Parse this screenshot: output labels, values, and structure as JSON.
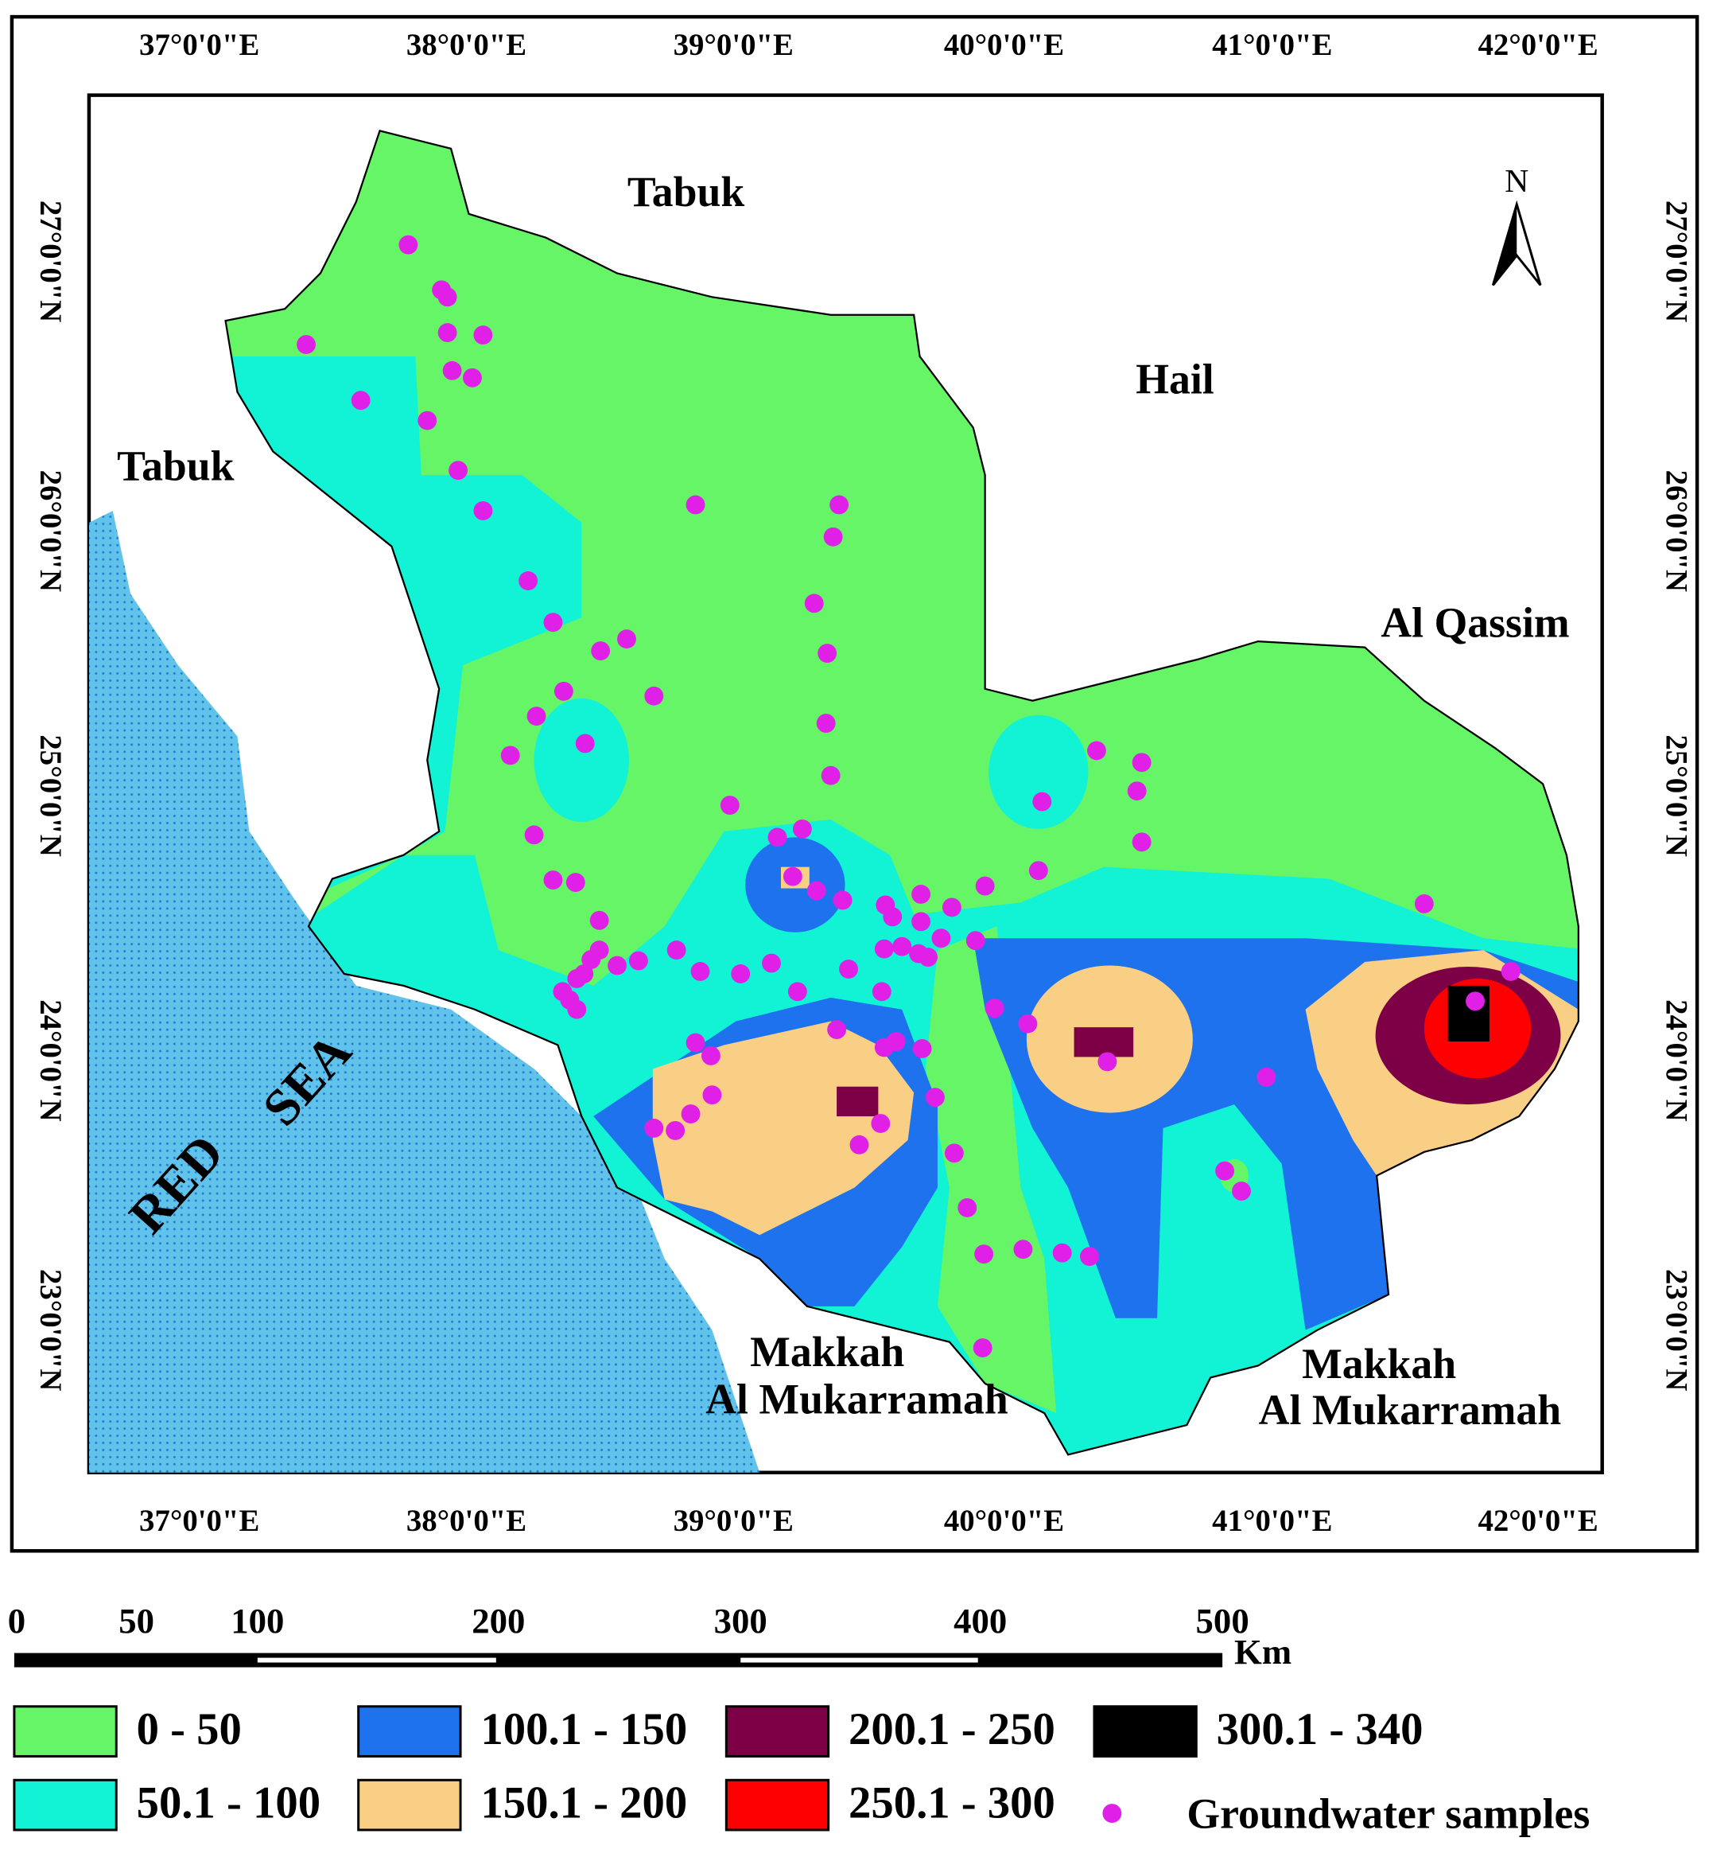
{
  "map": {
    "lon_labels": [
      "37°0'0\"E",
      "38°0'0\"E",
      "39°0'0\"E",
      "40°0'0\"E",
      "41°0'0\"E",
      "42°0'0\"E"
    ],
    "lat_labels": [
      "27°0'0\"N",
      "26°0'0\"N",
      "25°0'0\"N",
      "24°0'0\"N",
      "23°0'0\"N"
    ],
    "places": [
      "Tabuk",
      "Tabuk",
      "Hail",
      "Al Qassim",
      "Makkah",
      "Al Mukarramah",
      "Makkah",
      "Al Mukarramah"
    ],
    "sea": [
      "RED",
      "SEA"
    ],
    "north": "N"
  },
  "scale_bar": {
    "labels": [
      0,
      50,
      100,
      200,
      300,
      400,
      500
    ],
    "unit": "Km"
  },
  "legend": {
    "items": [
      {
        "label": "0 - 50",
        "color": "#66f566"
      },
      {
        "label": "50.1 - 100",
        "color": "#12f2d4"
      },
      {
        "label": "100.1 - 150",
        "color": "#1f72ee"
      },
      {
        "label": "150.1 - 200",
        "color": "#f9cf85"
      },
      {
        "label": "200.1 - 250",
        "color": "#7d0046"
      },
      {
        "label": "250.1 - 300",
        "color": "#ff0000"
      },
      {
        "label": "300.1 - 340",
        "color": "#000000"
      },
      {
        "label": "Groundwater samples",
        "color": "#e020e6"
      }
    ]
  }
}
